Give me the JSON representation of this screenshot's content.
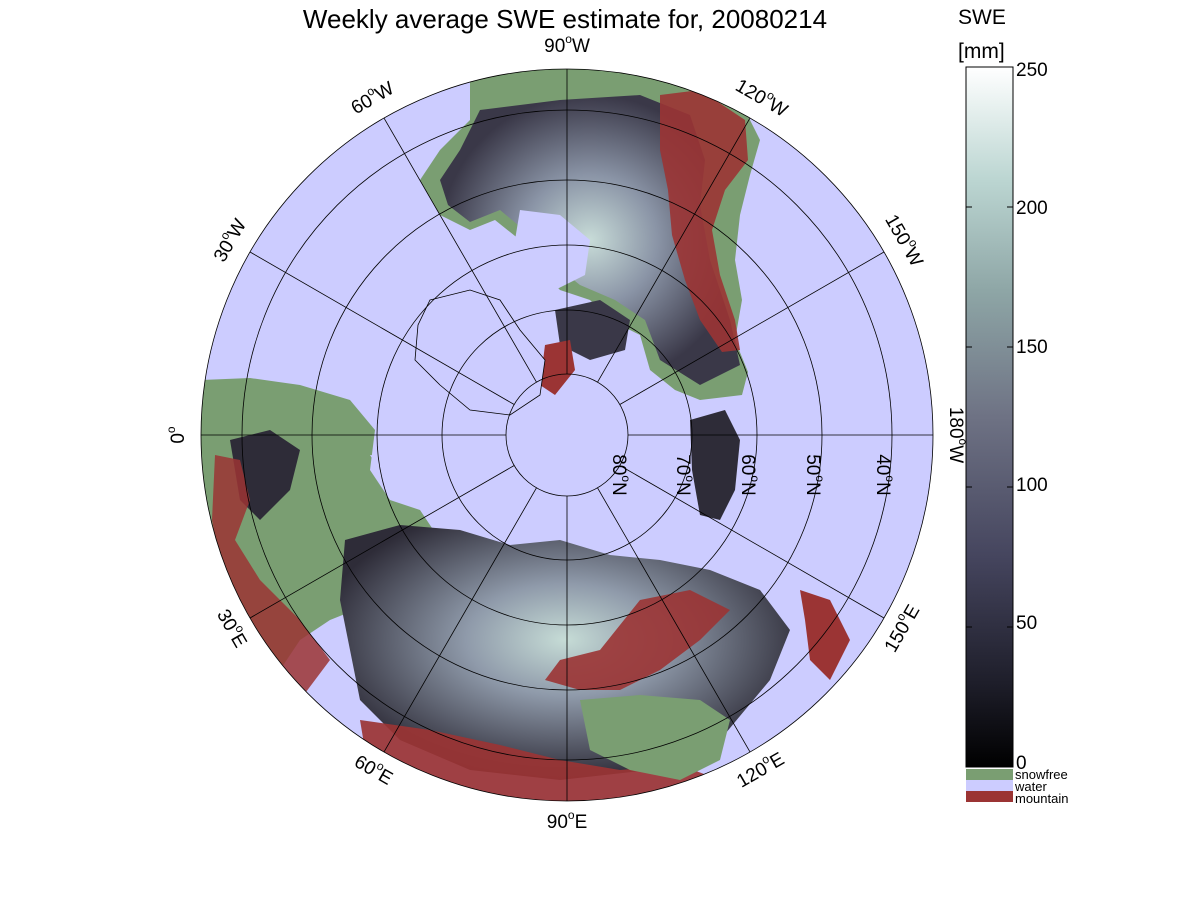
{
  "title": "Weekly average SWE estimate for, 20080214",
  "colors": {
    "water": "#ccccff",
    "snowfree": "#7a9e72",
    "mountain": "#9b3434",
    "grid": "#000000"
  },
  "colorbar": {
    "label_line1": "SWE",
    "label_line2": "[mm]",
    "ticks": [
      "0",
      "50",
      "100",
      "150",
      "200",
      "250"
    ],
    "range": [
      0,
      250
    ],
    "legend": [
      {
        "label": "snowfree",
        "color": "#7a9e72"
      },
      {
        "label": "water",
        "color": "#ccccff"
      },
      {
        "label": "mountain",
        "color": "#9b3434"
      }
    ]
  },
  "map": {
    "projection": "north-polar-stereographic",
    "longitude_labels": [
      {
        "deg": "0",
        "sup": "o",
        "hemi": ""
      },
      {
        "deg": "30",
        "sup": "o",
        "hemi": "W"
      },
      {
        "deg": "60",
        "sup": "o",
        "hemi": "W"
      },
      {
        "deg": "90",
        "sup": "o",
        "hemi": "W"
      },
      {
        "deg": "120",
        "sup": "o",
        "hemi": "W"
      },
      {
        "deg": "150",
        "sup": "o",
        "hemi": "W"
      },
      {
        "deg": "180",
        "sup": "o",
        "hemi": "W"
      },
      {
        "deg": "150",
        "sup": "o",
        "hemi": "E"
      },
      {
        "deg": "120",
        "sup": "o",
        "hemi": "E"
      },
      {
        "deg": "90",
        "sup": "o",
        "hemi": "E"
      },
      {
        "deg": "60",
        "sup": "o",
        "hemi": "E"
      },
      {
        "deg": "30",
        "sup": "o",
        "hemi": "E"
      }
    ],
    "latitude_labels": [
      "80",
      "70",
      "60",
      "50",
      "40"
    ],
    "lat_suffix": "N",
    "lat_sup": "o"
  }
}
